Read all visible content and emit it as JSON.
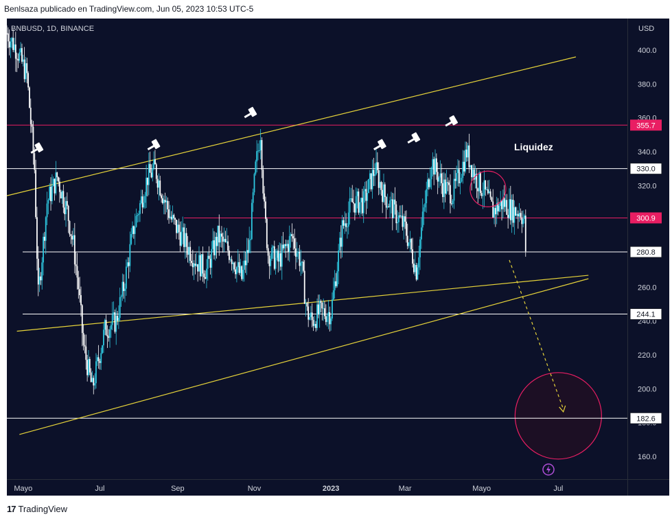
{
  "header": {
    "publisher_line": "Benlsaza publicado en TradingView.com, Jun 05, 2023 10:53 UTC-5"
  },
  "footer": {
    "brand": "TradingView",
    "logo_icon": "tradingview-logo-icon"
  },
  "colors": {
    "background": "#0c1129",
    "candle": "#2ec8e0",
    "candle_alt": "#ffffff",
    "channel": "#e6d33a",
    "level_white": "#ffffff",
    "level_pink": "#e91e63",
    "target_fill": "#1c0f24"
  },
  "chart_data": {
    "type": "line",
    "symbol_line": "BNBUSD, 1D, BINANCE",
    "currency": "USD",
    "y_ticks": [
      160.0,
      180.0,
      200.0,
      220.0,
      240.0,
      260.0,
      280.0,
      300.0,
      320.0,
      340.0,
      360.0,
      380.0,
      400.0
    ],
    "y_tick_labels": [
      "160.0",
      "180.0",
      "200.0",
      "220.0",
      "240.0",
      "260.0",
      "280.0",
      "300.0",
      "320.0",
      "340.0",
      "360.0",
      "380.0",
      "400.0"
    ],
    "ylim": [
      150,
      420
    ],
    "x_labels": [
      "Mayo",
      "Jul",
      "Sep",
      "Nov",
      "2023",
      "Mar",
      "Mayo",
      "Jul"
    ],
    "x_label_bold": "2023",
    "xlim": [
      "2022-04-18",
      "2023-08-25"
    ],
    "x_label_dates": [
      "2022-05-01",
      "2022-07-01",
      "2022-09-01",
      "2022-11-01",
      "2023-01-01",
      "2023-03-01",
      "2023-05-01",
      "2023-07-01"
    ],
    "grid": false,
    "series": [
      {
        "x": [
          "2022-04-18",
          "2022-04-26",
          "2022-05-04",
          "2022-05-10",
          "2022-05-13",
          "2022-05-20",
          "2022-05-28",
          "2022-06-05",
          "2022-06-10",
          "2022-06-14",
          "2022-06-18",
          "2022-06-25",
          "2022-07-05",
          "2022-07-14",
          "2022-07-20",
          "2022-07-28",
          "2022-08-08",
          "2022-08-14",
          "2022-08-20",
          "2022-08-27",
          "2022-09-08",
          "2022-09-16",
          "2022-09-24",
          "2022-10-03",
          "2022-10-13",
          "2022-10-22",
          "2022-10-28",
          "2022-11-02",
          "2022-11-06",
          "2022-11-09",
          "2022-11-12",
          "2022-11-20",
          "2022-12-01",
          "2022-12-08",
          "2022-12-13",
          "2022-12-17",
          "2022-12-23",
          "2023-01-01",
          "2023-01-10",
          "2023-01-18",
          "2023-01-27",
          "2023-02-05",
          "2023-02-12",
          "2023-02-20",
          "2023-03-01",
          "2023-03-10",
          "2023-03-15",
          "2023-03-22",
          "2023-03-31",
          "2023-04-08",
          "2023-04-15",
          "2023-04-19",
          "2023-04-26",
          "2023-05-04",
          "2023-05-10",
          "2023-05-18",
          "2023-05-26",
          "2023-06-01",
          "2023-06-04",
          "2023-06-05"
        ],
        "values": [
          410,
          400,
          385,
          330,
          255,
          310,
          325,
          305,
          285,
          260,
          225,
          200,
          235,
          240,
          260,
          295,
          325,
          330,
          315,
          300,
          285,
          275,
          270,
          290,
          280,
          265,
          285,
          330,
          352,
          305,
          280,
          275,
          290,
          275,
          245,
          240,
          245,
          245,
          295,
          310,
          310,
          330,
          315,
          305,
          295,
          270,
          300,
          335,
          320,
          315,
          330,
          340,
          325,
          315,
          305,
          310,
          305,
          305,
          298,
          282
        ]
      }
    ],
    "levels": [
      {
        "label": "355.7",
        "value": 355.7,
        "color": "pink"
      },
      {
        "label": "330.0",
        "value": 330.0,
        "color": "white"
      },
      {
        "label": "300.9",
        "value": 300.9,
        "color": "pink"
      },
      {
        "label": "280.8",
        "value": 280.8,
        "color": "white"
      },
      {
        "label": "244.1",
        "value": 244.1,
        "color": "white"
      },
      {
        "label": "182.6",
        "value": 182.6,
        "color": "white"
      }
    ],
    "channel_lines": [
      {
        "from": [
          "2022-04-18",
          314
        ],
        "to": [
          "2023-07-15",
          396
        ]
      },
      {
        "from": [
          "2022-04-26",
          234
        ],
        "to": [
          "2023-07-25",
          267
        ]
      },
      {
        "from": [
          "2022-04-28",
          173
        ],
        "to": [
          "2023-07-25",
          265
        ]
      }
    ],
    "annotations": {
      "liquidity_text": "Liquidez",
      "liquidity_circle": {
        "x": "2023-05-06",
        "y": 318
      },
      "target_circle": {
        "x": "2023-07-01",
        "y": 184
      },
      "arrow": {
        "from": [
          "2023-05-23",
          276
        ],
        "to": [
          "2023-07-05",
          188
        ]
      },
      "gavels": [
        {
          "x": "2022-05-14",
          "y": 342
        },
        {
          "x": "2022-08-15",
          "y": 344
        },
        {
          "x": "2022-10-31",
          "y": 363
        },
        {
          "x": "2023-02-11",
          "y": 344
        },
        {
          "x": "2023-03-10",
          "y": 348
        },
        {
          "x": "2023-04-09",
          "y": 358
        }
      ]
    }
  }
}
